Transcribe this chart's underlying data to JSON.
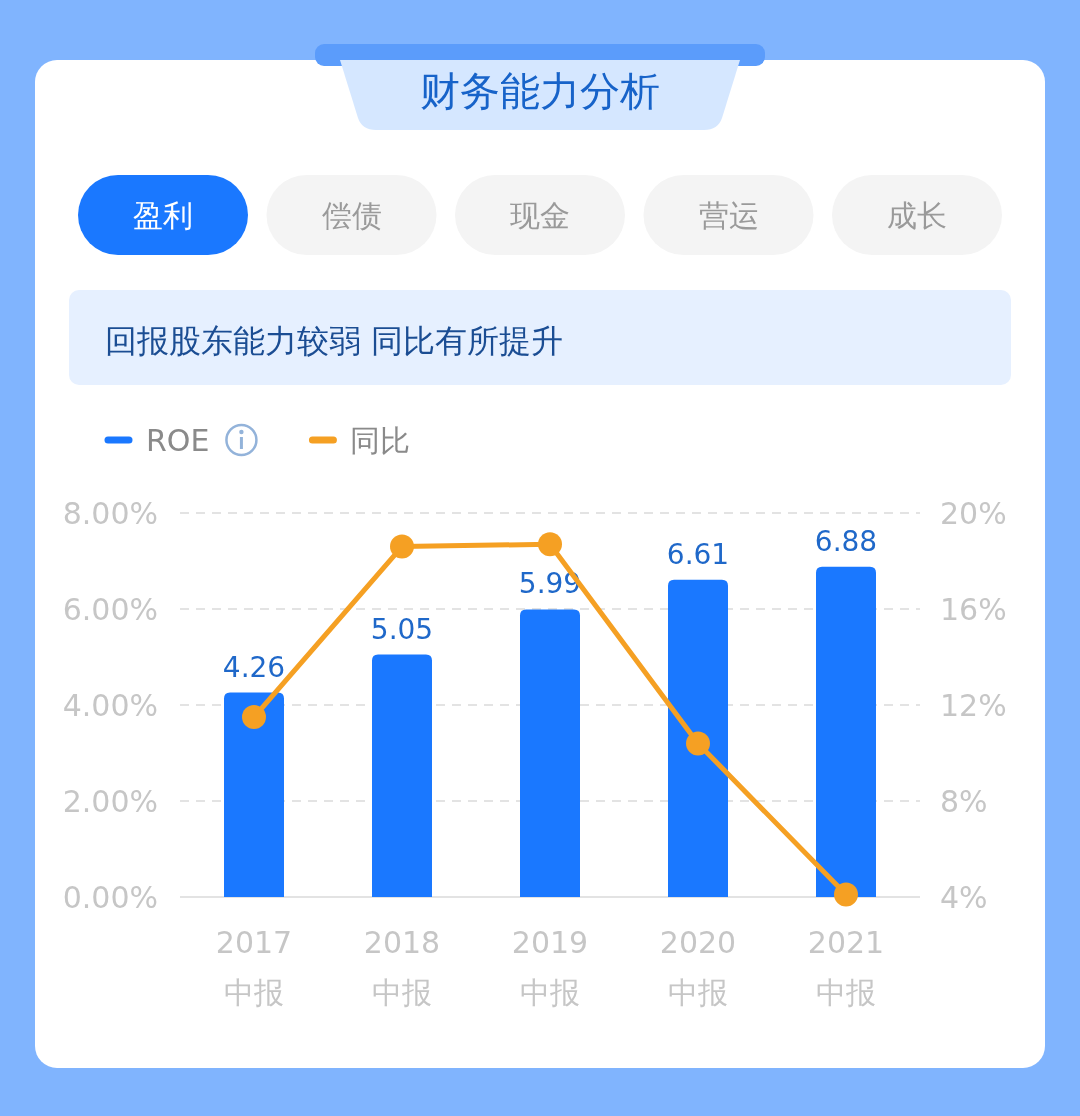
{
  "chart_data": {
    "type": "bar",
    "title": "财务能力分析",
    "subtitle": "回报股东能力较弱 同比有所提升",
    "annotations": [
      "盈利",
      "偿债",
      "现金",
      "营运",
      "成长"
    ],
    "categories": [
      "2017 中报",
      "2018 中报",
      "2019 中报",
      "2020 中报",
      "2021 中报"
    ],
    "series": [
      {
        "name": "ROE",
        "color": "#1a78ff",
        "values": [
          4.26,
          5.05,
          5.99,
          6.61,
          6.88
        ],
        "value_labels": [
          "4.26",
          "5.05",
          "5.99",
          "6.61",
          "6.88"
        ]
      },
      {
        "name": "同比",
        "type": "line",
        "axis": "y2",
        "color": "#f5a023",
        "marker": "circle",
        "values": [
          11.5,
          18.6,
          18.7,
          10.4,
          4.1
        ]
      }
    ],
    "ylim": [
      0,
      8
    ],
    "yticks": [
      {
        "value": 0,
        "label": "0.00%"
      },
      {
        "value": 2,
        "label": "2.00%"
      },
      {
        "value": 4,
        "label": "4.00%"
      },
      {
        "value": 6,
        "label": "6.00%"
      },
      {
        "value": 8,
        "label": "8.00%"
      }
    ],
    "y2lim": [
      4,
      20
    ],
    "y2ticks": [
      {
        "value": 4,
        "label": "4%"
      },
      {
        "value": 8,
        "label": "8%"
      },
      {
        "value": 12,
        "label": "12%"
      },
      {
        "value": 16,
        "label": "16%"
      },
      {
        "value": 20,
        "label": "20%"
      }
    ],
    "grid": "y",
    "legend": "top left"
  }
}
